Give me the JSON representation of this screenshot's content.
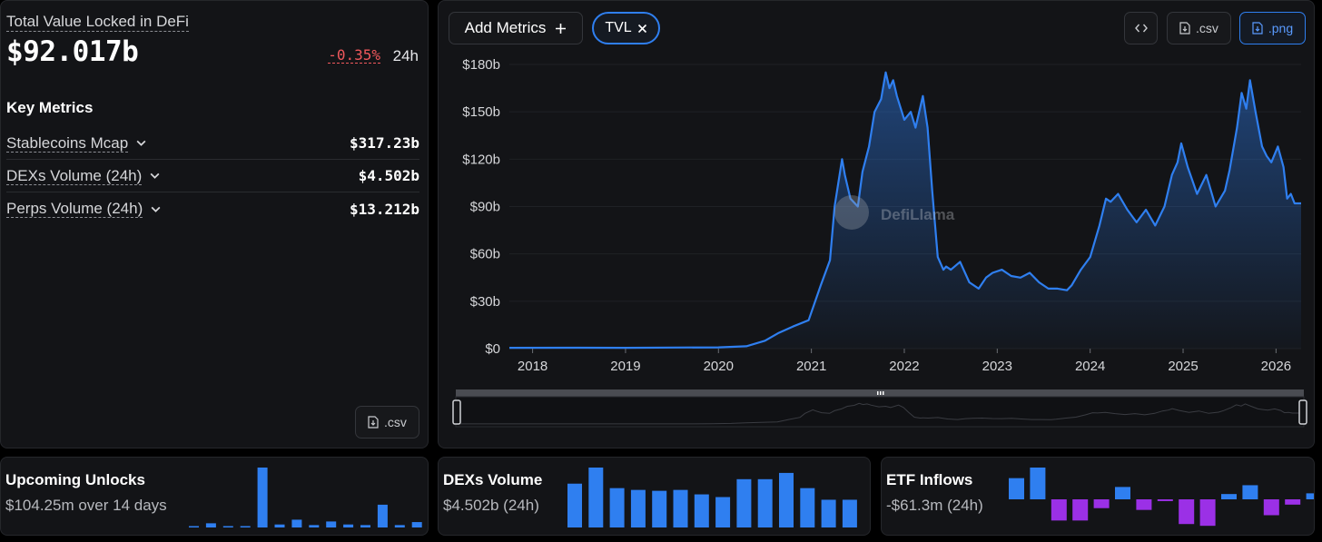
{
  "overview": {
    "title": "Total Value Locked in DeFi",
    "value": "$92.017b",
    "change": "-0.35%",
    "period": "24h",
    "csv_label": ".csv"
  },
  "key_metrics": {
    "title": "Key Metrics",
    "items": [
      {
        "name": "Stablecoins Mcap",
        "value": "$317.23b"
      },
      {
        "name": "DEXs Volume (24h)",
        "value": "$4.502b"
      },
      {
        "name": "Perps Volume (24h)",
        "value": "$13.212b"
      }
    ]
  },
  "toolbar": {
    "add_metrics": "Add Metrics",
    "tvl_chip": "TVL",
    "csv": ".csv",
    "png": ".png"
  },
  "watermark": "DefiLlama",
  "colors": {
    "accent": "#2f7ff0",
    "negative": "#f0585c",
    "purple": "#9b30e6"
  },
  "chart_data": [
    {
      "type": "area",
      "title": "Total Value Locked in DeFi",
      "ylabel": "TVL",
      "y_tick_labels": [
        "$0",
        "$30b",
        "$60b",
        "$90b",
        "$120b",
        "$150b",
        "$180b"
      ],
      "y_ticks": [
        0,
        30,
        60,
        90,
        120,
        150,
        180
      ],
      "ylim": [
        0,
        180
      ],
      "x_tick_labels": [
        "2018",
        "2019",
        "2020",
        "2021",
        "2022",
        "2023",
        "2024",
        "2025",
        "2026"
      ],
      "x_ticks": [
        2018,
        2019,
        2020,
        2021,
        2022,
        2023,
        2024,
        2025,
        2026
      ],
      "xlim": [
        2017.75,
        2026.27
      ],
      "series": [
        {
          "name": "TVL ($b)",
          "x": [
            2017.75,
            2018.5,
            2019.0,
            2019.5,
            2020.0,
            2020.3,
            2020.5,
            2020.65,
            2020.8,
            2020.97,
            2021.1,
            2021.2,
            2021.25,
            2021.33,
            2021.36,
            2021.42,
            2021.5,
            2021.55,
            2021.62,
            2021.68,
            2021.75,
            2021.8,
            2021.84,
            2021.88,
            2021.92,
            2022.0,
            2022.07,
            2022.12,
            2022.2,
            2022.25,
            2022.3,
            2022.36,
            2022.42,
            2022.45,
            2022.5,
            2022.6,
            2022.7,
            2022.8,
            2022.88,
            2022.95,
            2023.05,
            2023.15,
            2023.25,
            2023.35,
            2023.45,
            2023.55,
            2023.65,
            2023.75,
            2023.8,
            2023.9,
            2024.0,
            2024.1,
            2024.17,
            2024.22,
            2024.3,
            2024.4,
            2024.5,
            2024.6,
            2024.7,
            2024.8,
            2024.88,
            2024.94,
            2024.98,
            2025.05,
            2025.15,
            2025.25,
            2025.35,
            2025.45,
            2025.5,
            2025.58,
            2025.63,
            2025.68,
            2025.72,
            2025.78,
            2025.85,
            2025.9,
            2025.95,
            2026.02,
            2026.08,
            2026.12,
            2026.16,
            2026.2,
            2026.27
          ],
          "values": [
            0.5,
            0.6,
            0.5,
            0.7,
            0.8,
            1.5,
            5,
            10,
            14,
            18,
            40,
            56,
            90,
            120,
            110,
            95,
            90,
            112,
            128,
            150,
            158,
            175,
            165,
            170,
            160,
            145,
            150,
            140,
            160,
            140,
            100,
            58,
            50,
            52,
            50,
            55,
            42,
            38,
            45,
            48,
            50,
            46,
            45,
            48,
            42,
            38,
            38,
            37,
            40,
            50,
            58,
            78,
            95,
            93,
            98,
            88,
            80,
            88,
            78,
            90,
            110,
            118,
            130,
            115,
            98,
            110,
            90,
            100,
            113,
            140,
            162,
            152,
            170,
            150,
            128,
            122,
            118,
            128,
            115,
            95,
            98,
            92,
            92
          ]
        }
      ]
    },
    {
      "type": "bar",
      "title": "Upcoming Unlocks",
      "subtitle": "$104.25m over 14 days",
      "values": [
        0.2,
        0.7,
        0.2,
        0.2,
        10,
        0.5,
        1.3,
        0.4,
        1.0,
        0.5,
        0.4,
        3.8,
        0.4,
        0.9
      ]
    },
    {
      "type": "bar",
      "title": "DEXs Volume",
      "subtitle": "$4.502b (24h)",
      "values": [
        4.9,
        6.7,
        4.4,
        4.2,
        4.1,
        4.2,
        3.7,
        3.4,
        5.4,
        5.4,
        6.1,
        4.4,
        3.1,
        3.1
      ]
    },
    {
      "type": "bar",
      "title": "ETF Inflows",
      "subtitle": "-$61.3m (24h)",
      "values": [
        60,
        90,
        -60,
        -60,
        -25,
        35,
        -30,
        -5,
        -70,
        -75,
        15,
        40,
        -45,
        -15,
        17
      ]
    }
  ]
}
